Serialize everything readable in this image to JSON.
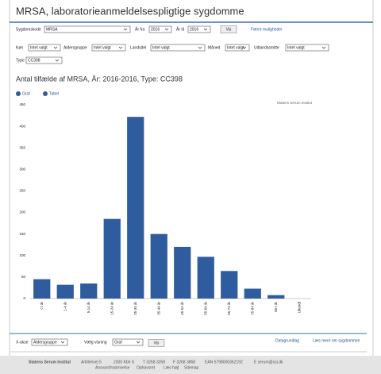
{
  "header": {
    "title": "MRSA, laboratorieanmeldelsespligtige sygdomme"
  },
  "filters": [
    {
      "label": "Sygdomskode",
      "value": "MRSA"
    },
    {
      "label": "År fra",
      "value": "2016"
    },
    {
      "label": "År til",
      "value": "2016"
    }
  ],
  "filter_button": "Vis",
  "filter_link": "Færre muligheder",
  "filters2": [
    {
      "label": "Køn",
      "value": "Intet valgt"
    },
    {
      "label": "Aldersgruppe",
      "value": "Intet valgt"
    },
    {
      "label": "Landsdel",
      "value": "Intet valgt"
    },
    {
      "label": "Måned",
      "value": "Intet valgt"
    },
    {
      "label": "Udlandssmitte",
      "value": "Intet valgt"
    }
  ],
  "filters3": [
    {
      "label": "Type",
      "value": "CC398"
    }
  ],
  "chart_heading": "Antal tilfælde af MRSA, År: 2016-2016, Type: CC398",
  "tabs": [
    "Graf",
    "Tabel"
  ],
  "chart_data": {
    "type": "bar",
    "source": "Statens Serum Institut",
    "categories": [
      "<1 år",
      "1-4 år",
      "5-14 år",
      "15-24 år",
      "25-34 år",
      "35-44 år",
      "45-54 år",
      "55-64 år",
      "65-74 år",
      "75-84 år",
      "85+ år",
      "Ukendt"
    ],
    "values": [
      45,
      32,
      35,
      185,
      422,
      150,
      120,
      97,
      64,
      23,
      8,
      0
    ],
    "color": "#2f5c9e",
    "ylim": [
      0,
      450
    ],
    "yticks": [
      0,
      50,
      100,
      150,
      200,
      250,
      300,
      350,
      400,
      450
    ],
    "grid": false
  },
  "bottom_controls": {
    "filters": [
      {
        "label": "X-akse",
        "value": "Aldersgruppe"
      },
      {
        "label": "Vælg visning",
        "value": "Graf"
      }
    ],
    "button": "Vis",
    "links": [
      "Datagrundlag",
      "Læs mere om sygdommen"
    ]
  },
  "footer": {
    "line1": [
      "Statens Serum Institut",
      "Artillerivej 5",
      "2300 Kbh S",
      "T 3268 3268",
      "F 3268 3868",
      "EAN 5798000362192",
      "E serum@ssi.dk"
    ],
    "line2": [
      "Ansvarsfraskrivelse",
      "Ophavsret",
      "Læs højt",
      "Sitemap"
    ]
  }
}
